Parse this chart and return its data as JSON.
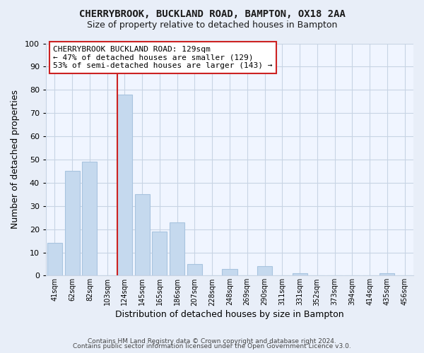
{
  "title": "CHERRYBROOK, BUCKLAND ROAD, BAMPTON, OX18 2AA",
  "subtitle": "Size of property relative to detached houses in Bampton",
  "xlabel": "Distribution of detached houses by size in Bampton",
  "ylabel": "Number of detached properties",
  "bar_labels": [
    "41sqm",
    "62sqm",
    "82sqm",
    "103sqm",
    "124sqm",
    "145sqm",
    "165sqm",
    "186sqm",
    "207sqm",
    "228sqm",
    "248sqm",
    "269sqm",
    "290sqm",
    "311sqm",
    "331sqm",
    "352sqm",
    "373sqm",
    "394sqm",
    "414sqm",
    "435sqm",
    "456sqm"
  ],
  "bar_values": [
    14,
    45,
    49,
    0,
    78,
    35,
    19,
    23,
    5,
    0,
    3,
    0,
    4,
    0,
    1,
    0,
    0,
    0,
    0,
    1,
    0
  ],
  "bar_color": "#c5d9ee",
  "bar_edge_color": "#a8c4df",
  "vline_color": "#cc2222",
  "vline_x_idx": 4,
  "ylim": [
    0,
    100
  ],
  "yticks": [
    0,
    10,
    20,
    30,
    40,
    50,
    60,
    70,
    80,
    90,
    100
  ],
  "annotation_title": "CHERRYBROOK BUCKLAND ROAD: 129sqm",
  "annotation_line1": "← 47% of detached houses are smaller (129)",
  "annotation_line2": "53% of semi-detached houses are larger (143) →",
  "footer1": "Contains HM Land Registry data © Crown copyright and database right 2024.",
  "footer2": "Contains public sector information licensed under the Open Government Licence v3.0.",
  "bg_color": "#e8eef8",
  "plot_bg_color": "#f0f5ff",
  "grid_color": "#c8d4e4"
}
